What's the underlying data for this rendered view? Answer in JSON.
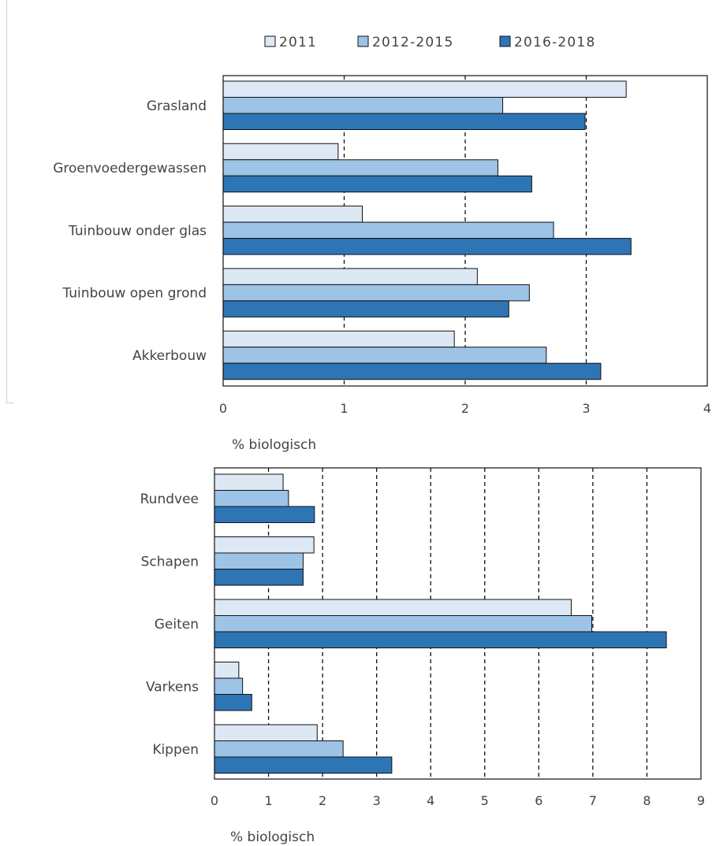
{
  "legend": {
    "items": [
      {
        "label": "2011",
        "color": "#dde8f5"
      },
      {
        "label": "2012-2015",
        "color": "#9dc3e6"
      },
      {
        "label": "2016-2018",
        "color": "#2e75b6"
      }
    ]
  },
  "chart_data": [
    {
      "type": "bar",
      "orientation": "horizontal",
      "categories": [
        "Grasland",
        "Groenvoedergewassen",
        "Tuinbouw onder glas",
        "Tuinbouw open grond",
        "Akkerbouw"
      ],
      "series": [
        {
          "name": "2011",
          "values": [
            3.33,
            0.95,
            1.15,
            2.1,
            1.91
          ]
        },
        {
          "name": "2012-2015",
          "values": [
            2.31,
            2.27,
            2.73,
            2.53,
            2.67
          ]
        },
        {
          "name": "2016-2018",
          "values": [
            2.99,
            2.55,
            3.37,
            2.36,
            3.12
          ]
        }
      ],
      "xlabel": "% biologisch",
      "xlim": [
        0,
        4
      ],
      "xticks": [
        "0",
        "1",
        "2",
        "3",
        "4"
      ],
      "grid": "vertical dashed",
      "legend_position": "top"
    },
    {
      "type": "bar",
      "orientation": "horizontal",
      "categories": [
        "Rundvee",
        "Schapen",
        "Geiten",
        "Varkens",
        "Kippen"
      ],
      "series": [
        {
          "name": "2011",
          "values": [
            1.27,
            1.84,
            6.6,
            0.45,
            1.9
          ]
        },
        {
          "name": "2012-2015",
          "values": [
            1.37,
            1.64,
            6.98,
            0.52,
            2.38
          ]
        },
        {
          "name": "2016-2018",
          "values": [
            1.85,
            1.64,
            8.36,
            0.69,
            3.28
          ]
        }
      ],
      "xlabel": "% biologisch",
      "xlim": [
        0,
        9
      ],
      "xticks": [
        "0",
        "1",
        "2",
        "3",
        "4",
        "5",
        "6",
        "7",
        "8",
        "9"
      ],
      "grid": "vertical dashed"
    }
  ]
}
